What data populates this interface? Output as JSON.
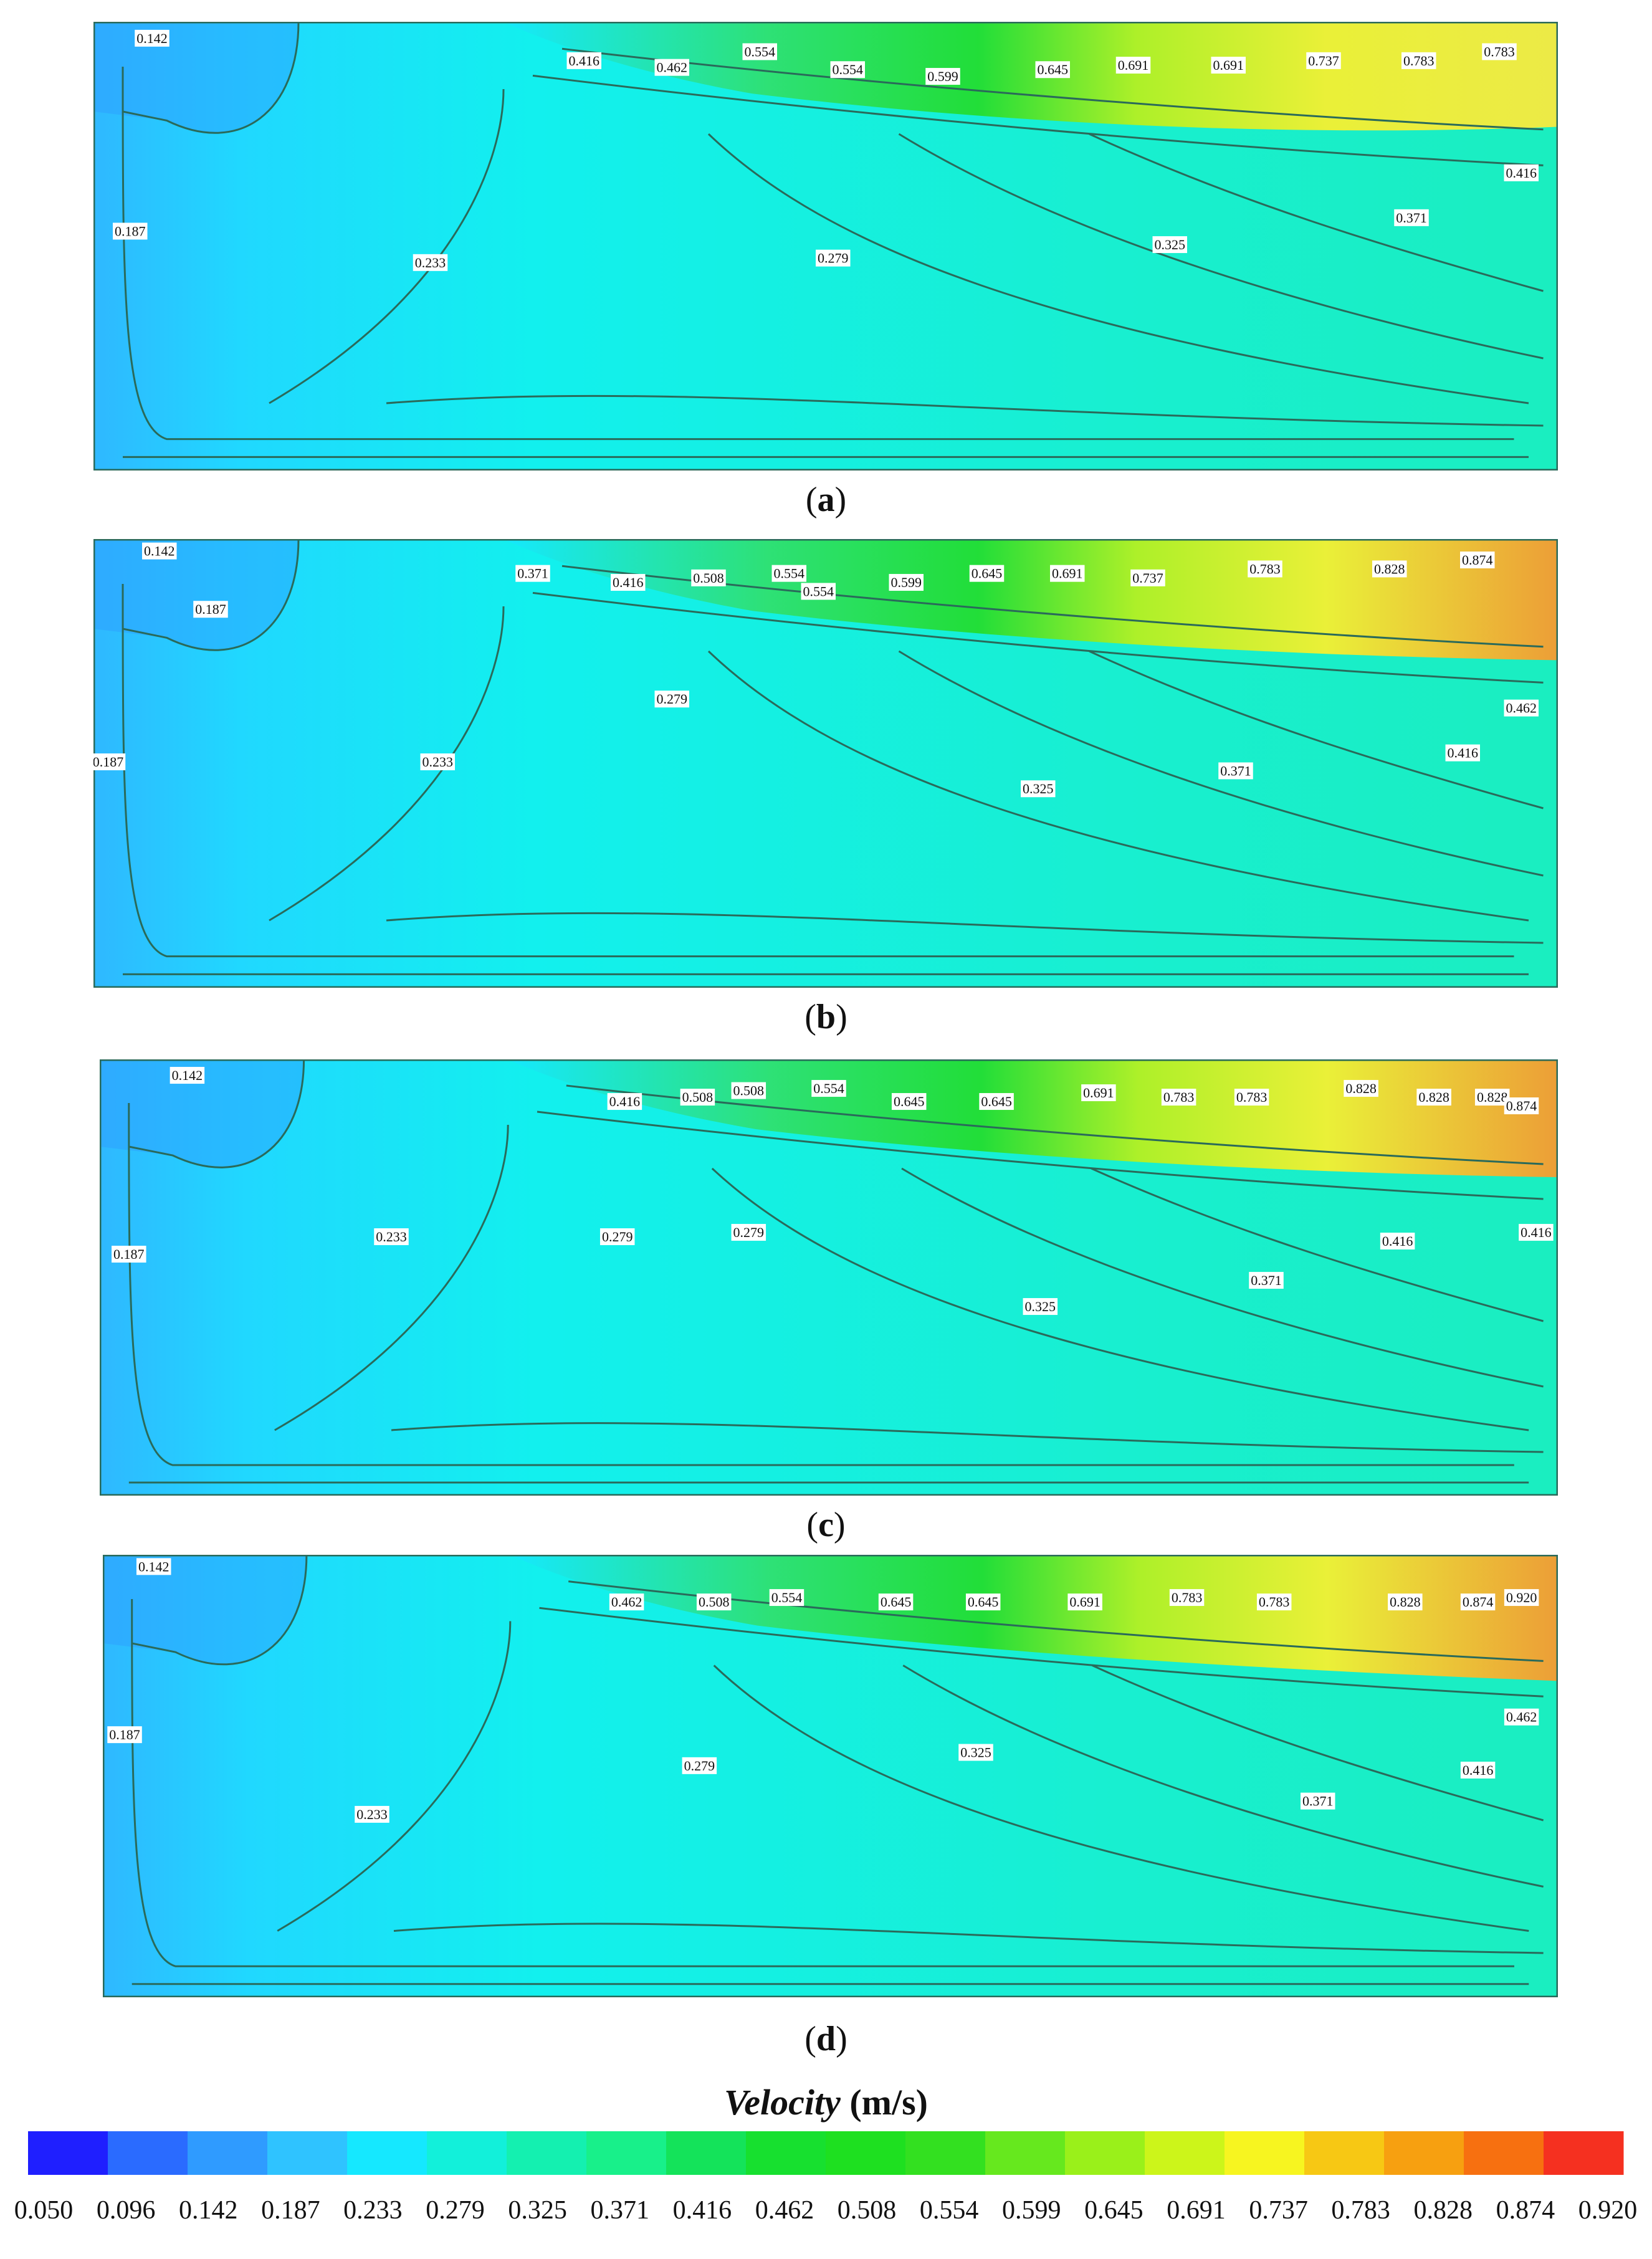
{
  "chart_data": {
    "type": "heatmap",
    "colorbar": {
      "title_italic": "Velocity",
      "title_unit": "(m/s)",
      "ticks": [
        "0.050",
        "0.096",
        "0.142",
        "0.187",
        "0.233",
        "0.279",
        "0.325",
        "0.371",
        "0.416",
        "0.462",
        "0.508",
        "0.554",
        "0.599",
        "0.645",
        "0.691",
        "0.737",
        "0.783",
        "0.828",
        "0.874",
        "0.920"
      ],
      "colors": [
        "#1f1fff",
        "#2a6bff",
        "#2f9bff",
        "#2fc3ff",
        "#15e8ff",
        "#12f0da",
        "#14f0b0",
        "#18f08a",
        "#14e35a",
        "#17e02f",
        "#1ee020",
        "#33e020",
        "#66e81e",
        "#9af01a",
        "#ccf51a",
        "#f7f520",
        "#f7c814",
        "#f7a010",
        "#f77010",
        "#f53020"
      ]
    },
    "panels": [
      {
        "label": "a",
        "contour_labels": [
          {
            "text": "0.142",
            "x": 0.04,
            "y": 0.04
          },
          {
            "text": "0.416",
            "x": 0.335,
            "y": 0.09
          },
          {
            "text": "0.462",
            "x": 0.395,
            "y": 0.105
          },
          {
            "text": "0.554",
            "x": 0.455,
            "y": 0.07
          },
          {
            "text": "0.554",
            "x": 0.515,
            "y": 0.11
          },
          {
            "text": "0.599",
            "x": 0.58,
            "y": 0.125
          },
          {
            "text": "0.645",
            "x": 0.655,
            "y": 0.11
          },
          {
            "text": "0.691",
            "x": 0.71,
            "y": 0.1
          },
          {
            "text": "0.691",
            "x": 0.775,
            "y": 0.1
          },
          {
            "text": "0.737",
            "x": 0.84,
            "y": 0.09
          },
          {
            "text": "0.783",
            "x": 0.905,
            "y": 0.09
          },
          {
            "text": "0.783",
            "x": 0.96,
            "y": 0.07
          },
          {
            "text": "0.416",
            "x": 0.975,
            "y": 0.34
          },
          {
            "text": "0.371",
            "x": 0.9,
            "y": 0.44
          },
          {
            "text": "0.325",
            "x": 0.735,
            "y": 0.5
          },
          {
            "text": "0.279",
            "x": 0.505,
            "y": 0.53
          },
          {
            "text": "0.233",
            "x": 0.23,
            "y": 0.54
          },
          {
            "text": "0.187",
            "x": 0.025,
            "y": 0.47
          }
        ]
      },
      {
        "label": "b",
        "contour_labels": [
          {
            "text": "0.142",
            "x": 0.045,
            "y": 0.03
          },
          {
            "text": "0.187",
            "x": 0.08,
            "y": 0.16
          },
          {
            "text": "0.371",
            "x": 0.3,
            "y": 0.08
          },
          {
            "text": "0.416",
            "x": 0.365,
            "y": 0.1
          },
          {
            "text": "0.508",
            "x": 0.42,
            "y": 0.09
          },
          {
            "text": "0.554",
            "x": 0.475,
            "y": 0.08
          },
          {
            "text": "0.554",
            "x": 0.495,
            "y": 0.12
          },
          {
            "text": "0.599",
            "x": 0.555,
            "y": 0.1
          },
          {
            "text": "0.645",
            "x": 0.61,
            "y": 0.08
          },
          {
            "text": "0.691",
            "x": 0.665,
            "y": 0.08
          },
          {
            "text": "0.737",
            "x": 0.72,
            "y": 0.09
          },
          {
            "text": "0.783",
            "x": 0.8,
            "y": 0.07
          },
          {
            "text": "0.828",
            "x": 0.885,
            "y": 0.07
          },
          {
            "text": "0.874",
            "x": 0.945,
            "y": 0.05
          },
          {
            "text": "0.462",
            "x": 0.975,
            "y": 0.38
          },
          {
            "text": "0.416",
            "x": 0.935,
            "y": 0.48
          },
          {
            "text": "0.371",
            "x": 0.78,
            "y": 0.52
          },
          {
            "text": "0.325",
            "x": 0.645,
            "y": 0.56
          },
          {
            "text": "0.279",
            "x": 0.395,
            "y": 0.36
          },
          {
            "text": "0.233",
            "x": 0.235,
            "y": 0.5
          },
          {
            "text": "0.187",
            "x": 0.01,
            "y": 0.5
          }
        ]
      },
      {
        "label": "c",
        "contour_labels": [
          {
            "text": "0.142",
            "x": 0.06,
            "y": 0.04
          },
          {
            "text": "0.416",
            "x": 0.36,
            "y": 0.1
          },
          {
            "text": "0.508",
            "x": 0.41,
            "y": 0.09
          },
          {
            "text": "0.508",
            "x": 0.445,
            "y": 0.075
          },
          {
            "text": "0.554",
            "x": 0.5,
            "y": 0.07
          },
          {
            "text": "0.645",
            "x": 0.555,
            "y": 0.1
          },
          {
            "text": "0.645",
            "x": 0.615,
            "y": 0.1
          },
          {
            "text": "0.691",
            "x": 0.685,
            "y": 0.08
          },
          {
            "text": "0.783",
            "x": 0.74,
            "y": 0.09
          },
          {
            "text": "0.783",
            "x": 0.79,
            "y": 0.09
          },
          {
            "text": "0.828",
            "x": 0.865,
            "y": 0.07
          },
          {
            "text": "0.828",
            "x": 0.915,
            "y": 0.09
          },
          {
            "text": "0.828",
            "x": 0.955,
            "y": 0.09
          },
          {
            "text": "0.874",
            "x": 0.975,
            "y": 0.11
          },
          {
            "text": "0.416",
            "x": 0.89,
            "y": 0.42
          },
          {
            "text": "0.416",
            "x": 0.985,
            "y": 0.4
          },
          {
            "text": "0.371",
            "x": 0.8,
            "y": 0.51
          },
          {
            "text": "0.325",
            "x": 0.645,
            "y": 0.57
          },
          {
            "text": "0.279",
            "x": 0.445,
            "y": 0.4
          },
          {
            "text": "0.279",
            "x": 0.355,
            "y": 0.41
          },
          {
            "text": "0.233",
            "x": 0.2,
            "y": 0.41
          },
          {
            "text": "0.187",
            "x": 0.02,
            "y": 0.45
          }
        ]
      },
      {
        "label": "d",
        "contour_labels": [
          {
            "text": "0.142",
            "x": 0.035,
            "y": 0.03
          },
          {
            "text": "0.462",
            "x": 0.36,
            "y": 0.11
          },
          {
            "text": "0.508",
            "x": 0.42,
            "y": 0.11
          },
          {
            "text": "0.554",
            "x": 0.47,
            "y": 0.1
          },
          {
            "text": "0.645",
            "x": 0.545,
            "y": 0.11
          },
          {
            "text": "0.645",
            "x": 0.605,
            "y": 0.11
          },
          {
            "text": "0.691",
            "x": 0.675,
            "y": 0.11
          },
          {
            "text": "0.783",
            "x": 0.745,
            "y": 0.1
          },
          {
            "text": "0.783",
            "x": 0.805,
            "y": 0.11
          },
          {
            "text": "0.828",
            "x": 0.895,
            "y": 0.11
          },
          {
            "text": "0.874",
            "x": 0.945,
            "y": 0.11
          },
          {
            "text": "0.920",
            "x": 0.975,
            "y": 0.1
          },
          {
            "text": "0.462",
            "x": 0.975,
            "y": 0.37
          },
          {
            "text": "0.416",
            "x": 0.945,
            "y": 0.49
          },
          {
            "text": "0.371",
            "x": 0.835,
            "y": 0.56
          },
          {
            "text": "0.325",
            "x": 0.6,
            "y": 0.45
          },
          {
            "text": "0.279",
            "x": 0.41,
            "y": 0.48
          },
          {
            "text": "0.233",
            "x": 0.185,
            "y": 0.59
          },
          {
            "text": "0.187",
            "x": 0.015,
            "y": 0.41
          }
        ]
      }
    ]
  }
}
